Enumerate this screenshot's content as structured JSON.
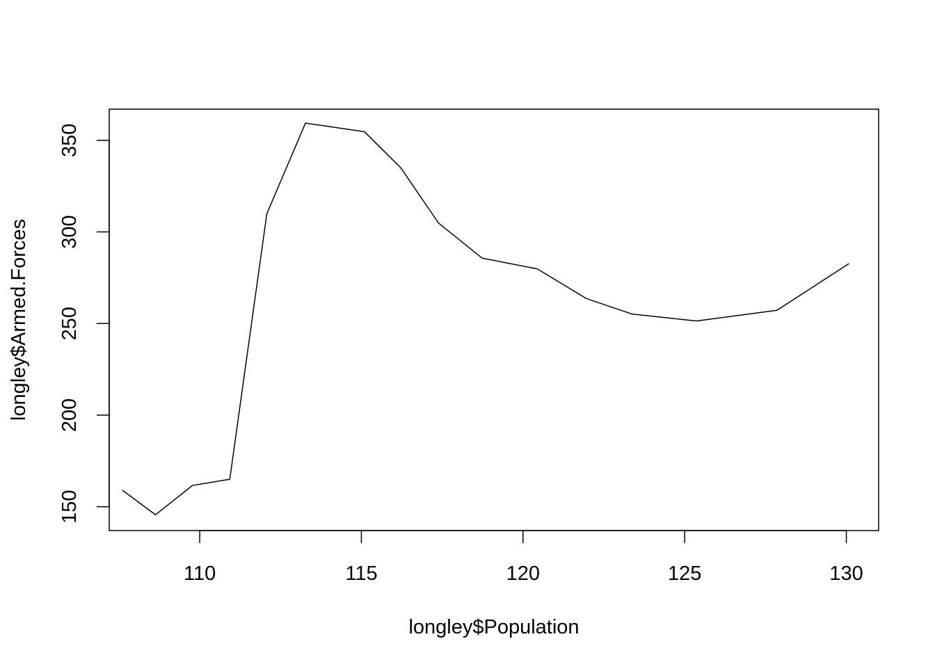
{
  "chart_data": {
    "type": "line",
    "title": "",
    "xlabel": "longley$Population",
    "ylabel": "longley$Armed.Forces",
    "xlim": [
      107.2,
      131.0
    ],
    "ylim": [
      137,
      367
    ],
    "x_ticks": [
      110,
      115,
      120,
      125,
      130
    ],
    "y_ticks": [
      150,
      200,
      250,
      300,
      350
    ],
    "grid": false,
    "line_color": "#000000",
    "series": [
      {
        "x": [
          107.608,
          108.632,
          109.773,
          110.929,
          112.075,
          113.27,
          115.094,
          116.219,
          117.388,
          118.734,
          120.445,
          121.95,
          123.366,
          125.368,
          127.852,
          130.081
        ],
        "y": [
          159.0,
          145.6,
          161.6,
          165.0,
          309.9,
          359.4,
          354.7,
          335.0,
          304.8,
          285.7,
          279.8,
          263.7,
          255.2,
          251.4,
          257.2,
          282.7
        ]
      }
    ]
  }
}
